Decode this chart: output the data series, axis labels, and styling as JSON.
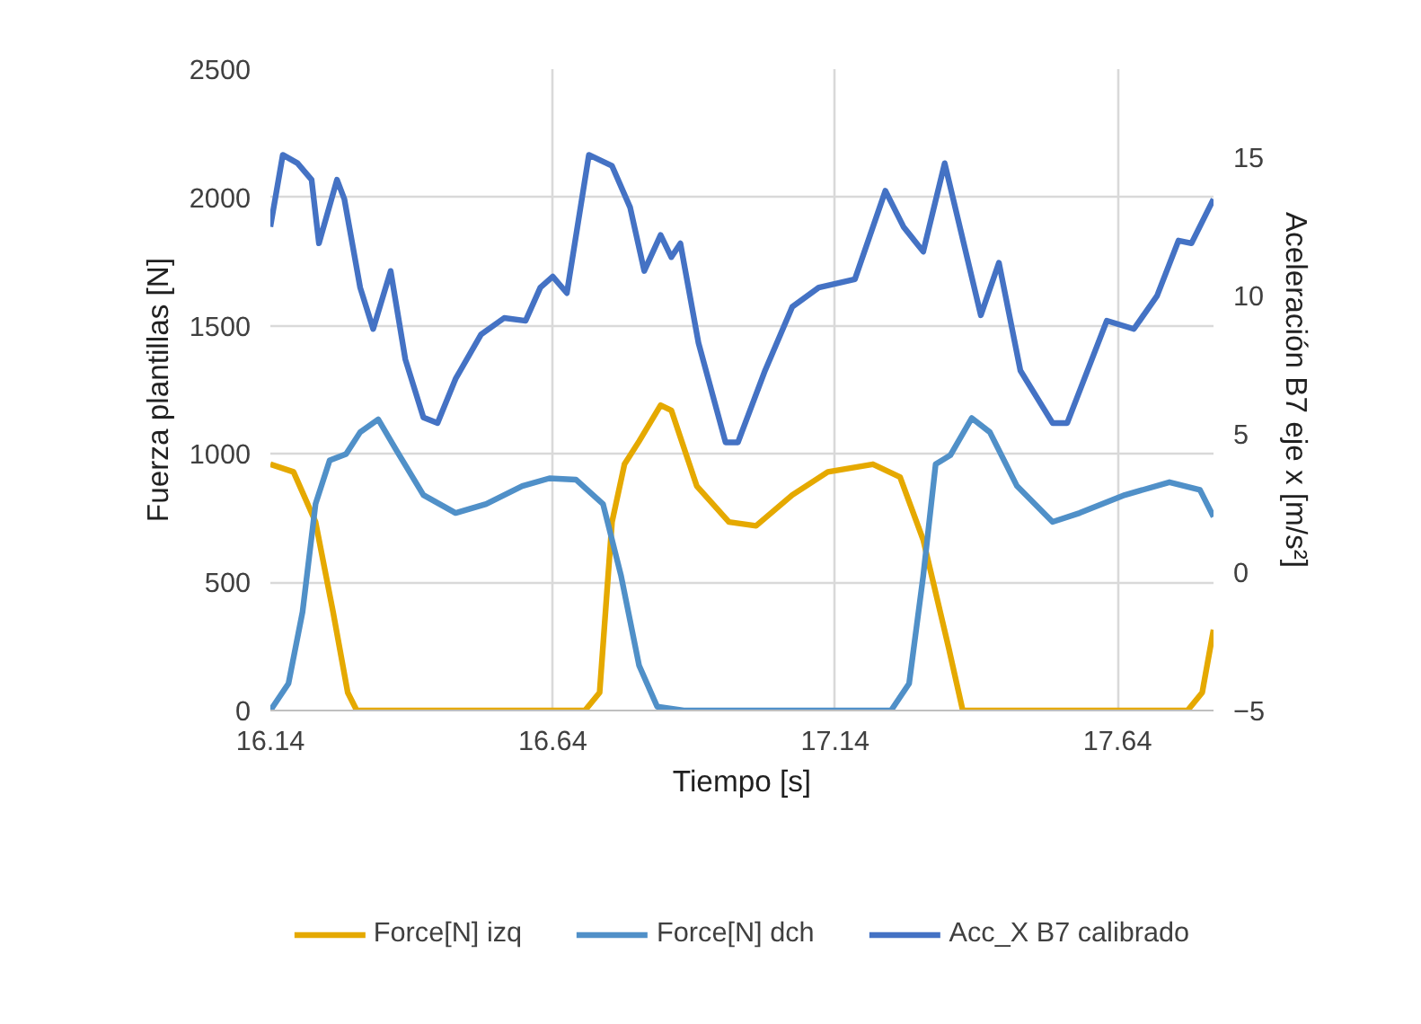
{
  "chart_data": {
    "type": "line",
    "xlabel": "Tiempo [s]",
    "ylabel": "Fuerza plantillas [N]",
    "y2label": "Aceleración B7 eje x [m/s²]",
    "xlim": [
      16.14,
      17.81
    ],
    "xticks": [
      16.14,
      16.64,
      17.14,
      17.64
    ],
    "ylim": [
      0,
      2500
    ],
    "yticks": [
      0,
      500,
      1000,
      1500,
      2000,
      2500
    ],
    "y2lim": [
      -5,
      18.2
    ],
    "y2ticks": [
      -5,
      0,
      5,
      10,
      15
    ],
    "grid": true,
    "legend": "bottom",
    "marker": "none",
    "line_style": "solid",
    "series": [
      {
        "name": "Force[N] izq",
        "color": "#e5a900",
        "x": [
          16.14,
          16.181,
          16.22,
          16.251,
          16.277,
          16.293,
          16.697,
          16.723,
          16.745,
          16.767,
          16.793,
          16.831,
          16.85,
          16.895,
          16.952,
          17.0,
          17.064,
          17.127,
          17.207,
          17.255,
          17.296,
          17.341,
          17.366,
          17.764,
          17.79,
          17.81
        ],
        "values": [
          960,
          930,
          735,
          385,
          70,
          0,
          0,
          70,
          735,
          960,
          1050,
          1190,
          1170,
          875,
          735,
          720,
          840,
          930,
          960,
          910,
          665,
          245,
          0,
          0,
          70,
          315
        ]
      },
      {
        "name": "Force[N] dch",
        "color": "#5090c8",
        "x": [
          16.14,
          16.172,
          16.197,
          16.22,
          16.245,
          16.274,
          16.299,
          16.331,
          16.363,
          16.411,
          16.468,
          16.522,
          16.586,
          16.634,
          16.681,
          16.729,
          16.761,
          16.793,
          16.825,
          16.872,
          17.239,
          17.271,
          17.296,
          17.318,
          17.344,
          17.382,
          17.414,
          17.462,
          17.525,
          17.573,
          17.653,
          17.732,
          17.786,
          17.81
        ],
        "values": [
          0,
          105,
          385,
          805,
          975,
          1000,
          1085,
          1135,
          1015,
          840,
          770,
          805,
          875,
          905,
          900,
          805,
          525,
          175,
          15,
          0,
          0,
          105,
          525,
          960,
          995,
          1140,
          1085,
          875,
          735,
          770,
          840,
          890,
          860,
          755
        ]
      },
      {
        "name": "Acc_X B7 calibrado",
        "color": "#4472c4",
        "axis": "y2",
        "x": [
          16.14,
          16.162,
          16.188,
          16.213,
          16.226,
          16.258,
          16.271,
          16.299,
          16.322,
          16.353,
          16.379,
          16.411,
          16.436,
          16.468,
          16.513,
          16.554,
          16.592,
          16.618,
          16.64,
          16.665,
          16.704,
          16.745,
          16.777,
          16.802,
          16.831,
          16.85,
          16.866,
          16.898,
          16.946,
          16.968,
          17.016,
          17.064,
          17.111,
          17.175,
          17.229,
          17.261,
          17.296,
          17.334,
          17.398,
          17.43,
          17.468,
          17.525,
          17.551,
          17.621,
          17.669,
          17.71,
          17.748,
          17.771,
          17.81
        ],
        "values": [
          12.5,
          15.1,
          14.8,
          14.2,
          11.9,
          14.2,
          13.5,
          10.3,
          8.8,
          10.9,
          7.7,
          5.6,
          5.4,
          7.0,
          8.6,
          9.2,
          9.1,
          10.3,
          10.7,
          10.1,
          15.1,
          14.7,
          13.2,
          10.9,
          12.2,
          11.4,
          11.9,
          8.3,
          4.7,
          4.7,
          7.3,
          9.6,
          10.3,
          10.6,
          13.8,
          12.5,
          11.6,
          14.8,
          9.3,
          11.2,
          7.3,
          5.4,
          5.4,
          9.1,
          8.8,
          10.0,
          12.0,
          11.9,
          13.5
        ]
      }
    ]
  }
}
